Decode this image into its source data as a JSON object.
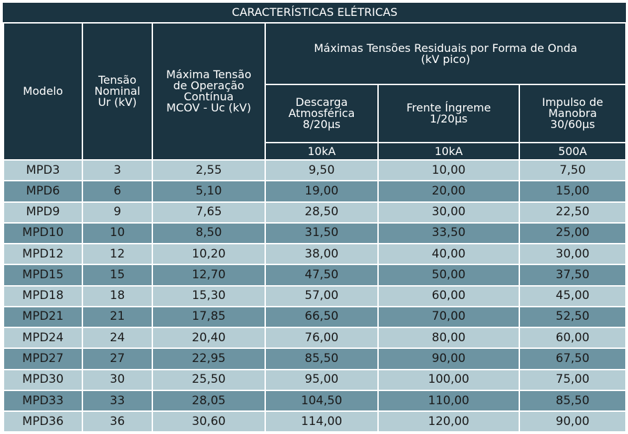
{
  "title": "CARACTERÍSTICAS ELÉTRICAS",
  "headers": {
    "modelo": "Modelo",
    "tensao_nominal": [
      "Tensão",
      "Nominal",
      "Ur (kV)"
    ],
    "mcov": [
      "Máxima Tensão",
      "de Operação",
      "Contínua",
      "MCOV - Uc (kV)"
    ],
    "residuais": [
      "Máximas Tensões Residuais por Forma de Onda",
      "(kV pico)"
    ],
    "descarga": [
      "Descarga",
      "Atmosférica",
      "8/20µs"
    ],
    "frente": [
      "Frente Íngreme",
      "1/20µs"
    ],
    "impulso": [
      "Impulso de",
      "Manobra",
      "30/60µs"
    ],
    "units": [
      "10kA",
      "10kA",
      "500A"
    ]
  },
  "rows": [
    [
      "MPD3",
      "3",
      "2,55",
      "9,50",
      "10,00",
      "7,50"
    ],
    [
      "MPD6",
      "6",
      "5,10",
      "19,00",
      "20,00",
      "15,00"
    ],
    [
      "MPD9",
      "9",
      "7,65",
      "28,50",
      "30,00",
      "22,50"
    ],
    [
      "MPD10",
      "10",
      "8,50",
      "31,50",
      "33,50",
      "25,00"
    ],
    [
      "MPD12",
      "12",
      "10,20",
      "38,00",
      "40,00",
      "30,00"
    ],
    [
      "MPD15",
      "15",
      "12,70",
      "47,50",
      "50,00",
      "37,50"
    ],
    [
      "MPD18",
      "18",
      "15,30",
      "57,00",
      "60,00",
      "45,00"
    ],
    [
      "MPD21",
      "21",
      "17,85",
      "66,50",
      "70,00",
      "52,50"
    ],
    [
      "MPD24",
      "24",
      "20,40",
      "76,00",
      "80,00",
      "60,00"
    ],
    [
      "MPD27",
      "27",
      "22,95",
      "85,50",
      "90,00",
      "67,50"
    ],
    [
      "MPD30",
      "30",
      "25,50",
      "95,00",
      "100,00",
      "75,00"
    ],
    [
      "MPD33",
      "33",
      "28,05",
      "104,50",
      "110,00",
      "85,50"
    ],
    [
      "MPD36",
      "36",
      "30,60",
      "114,00",
      "120,00",
      "90,00"
    ]
  ]
}
